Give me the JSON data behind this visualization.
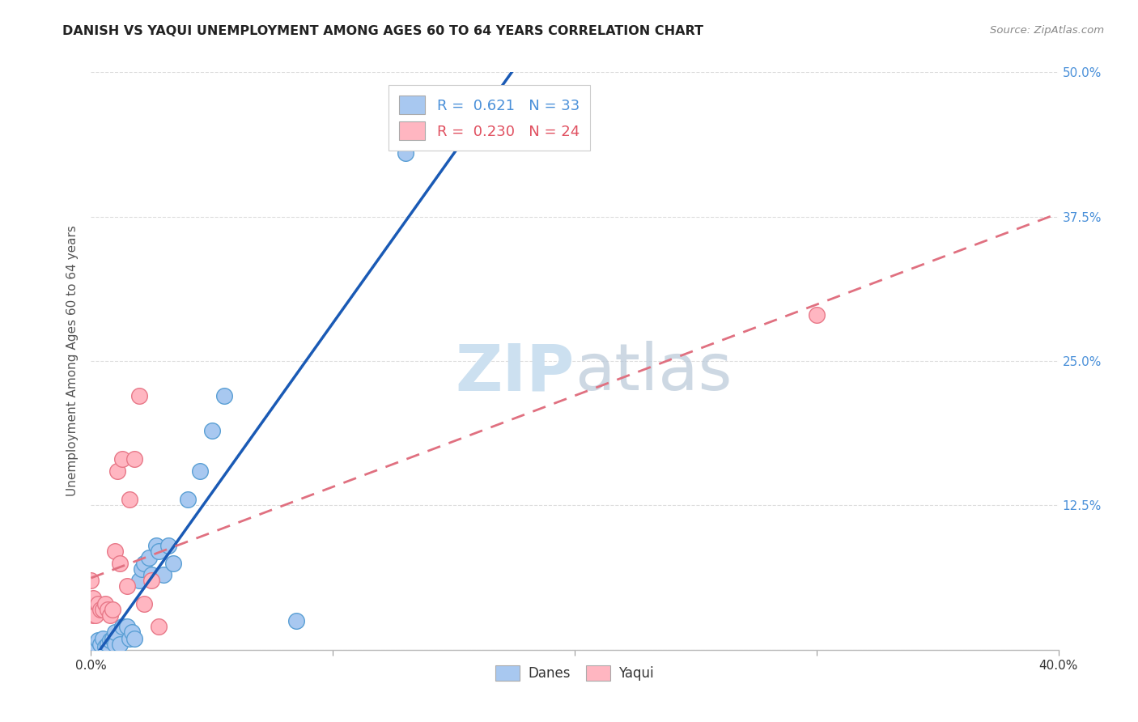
{
  "title": "DANISH VS YAQUI UNEMPLOYMENT AMONG AGES 60 TO 64 YEARS CORRELATION CHART",
  "source": "Source: ZipAtlas.com",
  "ylabel": "Unemployment Among Ages 60 to 64 years",
  "xlabel": "",
  "xlim": [
    0.0,
    0.4
  ],
  "ylim": [
    0.0,
    0.5
  ],
  "xticks": [
    0.0,
    0.1,
    0.2,
    0.3,
    0.4
  ],
  "yticks": [
    0.0,
    0.125,
    0.25,
    0.375,
    0.5
  ],
  "xtick_labels": [
    "0.0%",
    "",
    "",
    "",
    "40.0%"
  ],
  "ytick_labels": [
    "",
    "12.5%",
    "25.0%",
    "37.5%",
    "50.0%"
  ],
  "legend_r_danes": "R =  0.621",
  "legend_n_danes": "N = 33",
  "legend_r_yaqui": "R =  0.230",
  "legend_n_yaqui": "N = 24",
  "danes_color": "#a8c8f0",
  "danes_edge_color": "#5a9fd4",
  "yaqui_color": "#ffb6c1",
  "yaqui_edge_color": "#e87888",
  "danes_line_color": "#1a5ab5",
  "yaqui_line_color": "#e07080",
  "watermark_color": "#cce0f0",
  "background_color": "#ffffff",
  "grid_color": "#dddddd",
  "danes_x": [
    0.002,
    0.003,
    0.004,
    0.005,
    0.006,
    0.007,
    0.008,
    0.009,
    0.01,
    0.01,
    0.012,
    0.013,
    0.015,
    0.016,
    0.017,
    0.018,
    0.02,
    0.021,
    0.022,
    0.024,
    0.025,
    0.027,
    0.028,
    0.03,
    0.032,
    0.034,
    0.04,
    0.045,
    0.05,
    0.055,
    0.085,
    0.13,
    0.155
  ],
  "danes_y": [
    0.005,
    0.008,
    0.005,
    0.01,
    0.003,
    0.005,
    0.008,
    0.01,
    0.005,
    0.015,
    0.005,
    0.02,
    0.02,
    0.01,
    0.015,
    0.01,
    0.06,
    0.07,
    0.075,
    0.08,
    0.065,
    0.09,
    0.085,
    0.065,
    0.09,
    0.075,
    0.13,
    0.155,
    0.19,
    0.22,
    0.025,
    0.43,
    0.455
  ],
  "yaqui_x": [
    0.0,
    0.0,
    0.001,
    0.001,
    0.002,
    0.003,
    0.004,
    0.005,
    0.006,
    0.007,
    0.008,
    0.009,
    0.01,
    0.011,
    0.012,
    0.013,
    0.015,
    0.016,
    0.018,
    0.02,
    0.022,
    0.025,
    0.028,
    0.3
  ],
  "yaqui_y": [
    0.04,
    0.06,
    0.03,
    0.045,
    0.03,
    0.04,
    0.035,
    0.035,
    0.04,
    0.035,
    0.03,
    0.035,
    0.085,
    0.155,
    0.075,
    0.165,
    0.055,
    0.13,
    0.165,
    0.22,
    0.04,
    0.06,
    0.02,
    0.29
  ]
}
